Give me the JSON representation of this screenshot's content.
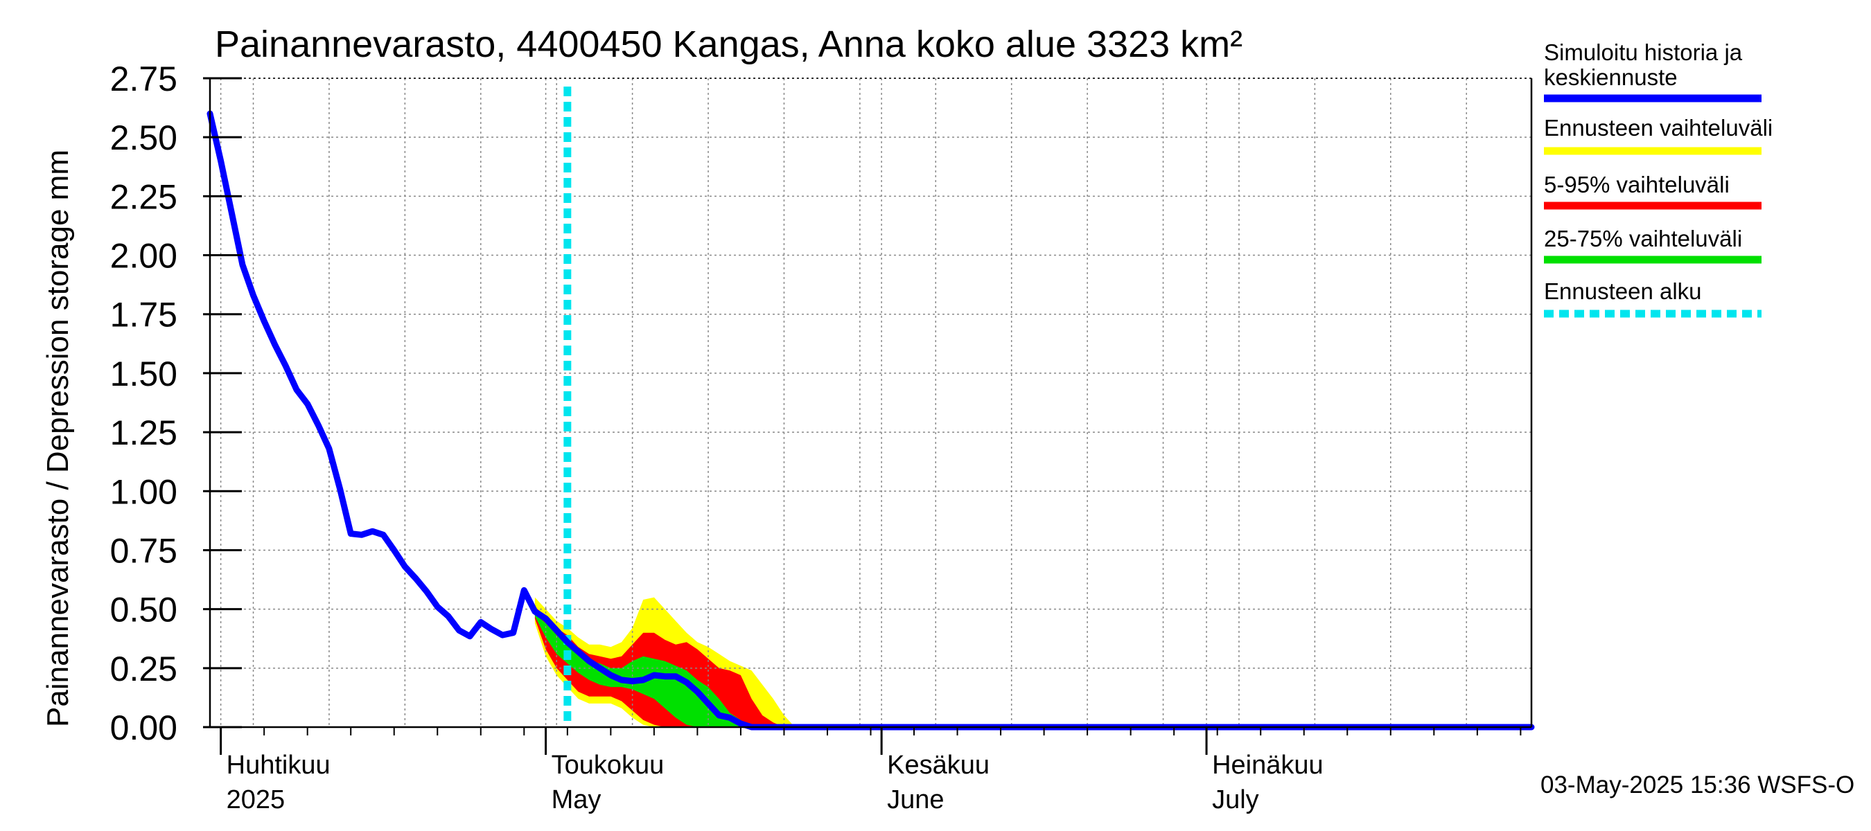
{
  "chart_data": {
    "type": "area",
    "title": "Painannevarasto, 4400450 Kangas, Anna koko alue 3323 km²",
    "ylabel": "Painannevarasto / Depression storage    mm",
    "ylim": [
      0,
      2.75
    ],
    "yticks": [
      "0.00",
      "0.25",
      "0.50",
      "0.75",
      "1.00",
      "1.25",
      "1.50",
      "1.75",
      "2.00",
      "2.25",
      "2.50",
      "2.75"
    ],
    "xlim": [
      "2025-03-31",
      "2025-07-31"
    ],
    "grid": true,
    "legend_position": "right",
    "month_labels": [
      {
        "date": "2025-04-01",
        "fi": "Huhtikuu",
        "en": "2025"
      },
      {
        "date": "2025-05-01",
        "fi": "Toukokuu",
        "en": "May"
      },
      {
        "date": "2025-06-01",
        "fi": "Kesäkuu",
        "en": "June"
      },
      {
        "date": "2025-07-01",
        "fi": "Heinäkuu",
        "en": "July"
      }
    ],
    "forecast_start": "2025-05-03",
    "footer": "03-May-2025 15:36 WSFS-O",
    "legend": [
      {
        "label": "Simuloitu historia ja keskiennuste",
        "color": "#0000ff",
        "style": "solid"
      },
      {
        "label": "Ennusteen vaihteluväli",
        "color": "#ffff00",
        "style": "solid"
      },
      {
        "label": "5-95% vaihteluväli",
        "color": "#ff0000",
        "style": "solid"
      },
      {
        "label": "25-75% vaihteluväli",
        "color": "#00e000",
        "style": "solid"
      },
      {
        "label": "Ennusteen alku",
        "color": "#00e5ee",
        "style": "dotted"
      }
    ],
    "series": [
      {
        "name": "Simuloitu historia ja keskiennuste",
        "color": "#0000ff",
        "points": [
          [
            "2025-03-31",
            2.6
          ],
          [
            "2025-04-01",
            2.4
          ],
          [
            "2025-04-02",
            2.18
          ],
          [
            "2025-04-03",
            1.96
          ],
          [
            "2025-04-04",
            1.83
          ],
          [
            "2025-04-05",
            1.72
          ],
          [
            "2025-04-06",
            1.62
          ],
          [
            "2025-04-07",
            1.53
          ],
          [
            "2025-04-08",
            1.43
          ],
          [
            "2025-04-09",
            1.37
          ],
          [
            "2025-04-10",
            1.28
          ],
          [
            "2025-04-11",
            1.18
          ],
          [
            "2025-04-12",
            1.01
          ],
          [
            "2025-04-13",
            0.82
          ],
          [
            "2025-04-14",
            0.815
          ],
          [
            "2025-04-15",
            0.83
          ],
          [
            "2025-04-16",
            0.815
          ],
          [
            "2025-04-17",
            0.75
          ],
          [
            "2025-04-18",
            0.68
          ],
          [
            "2025-04-19",
            0.63
          ],
          [
            "2025-04-20",
            0.575
          ],
          [
            "2025-04-21",
            0.51
          ],
          [
            "2025-04-22",
            0.47
          ],
          [
            "2025-04-23",
            0.41
          ],
          [
            "2025-04-24",
            0.385
          ],
          [
            "2025-04-25",
            0.445
          ],
          [
            "2025-04-26",
            0.415
          ],
          [
            "2025-04-27",
            0.39
          ],
          [
            "2025-04-28",
            0.4
          ],
          [
            "2025-04-29",
            0.58
          ],
          [
            "2025-04-30",
            0.49
          ],
          [
            "2025-05-01",
            0.46
          ],
          [
            "2025-05-02",
            0.41
          ],
          [
            "2025-05-03",
            0.36
          ],
          [
            "2025-05-04",
            0.32
          ],
          [
            "2025-05-05",
            0.28
          ],
          [
            "2025-05-06",
            0.25
          ],
          [
            "2025-05-07",
            0.22
          ],
          [
            "2025-05-08",
            0.2
          ],
          [
            "2025-05-09",
            0.195
          ],
          [
            "2025-05-10",
            0.2
          ],
          [
            "2025-05-11",
            0.22
          ],
          [
            "2025-05-12",
            0.215
          ],
          [
            "2025-05-13",
            0.215
          ],
          [
            "2025-05-14",
            0.19
          ],
          [
            "2025-05-15",
            0.15
          ],
          [
            "2025-05-16",
            0.1
          ],
          [
            "2025-05-17",
            0.05
          ],
          [
            "2025-05-18",
            0.04
          ],
          [
            "2025-05-19",
            0.015
          ],
          [
            "2025-05-20",
            0.0
          ],
          [
            "2025-07-31",
            0.0
          ]
        ]
      }
    ],
    "bands": [
      {
        "name": "Ennusteen vaihteluväli",
        "color": "#ffff00",
        "upper": [
          [
            "2025-04-30",
            0.55
          ],
          [
            "2025-05-01",
            0.5
          ],
          [
            "2025-05-02",
            0.45
          ],
          [
            "2025-05-03",
            0.42
          ],
          [
            "2025-05-04",
            0.38
          ],
          [
            "2025-05-05",
            0.35
          ],
          [
            "2025-05-06",
            0.35
          ],
          [
            "2025-05-07",
            0.34
          ],
          [
            "2025-05-08",
            0.36
          ],
          [
            "2025-05-09",
            0.42
          ],
          [
            "2025-05-10",
            0.54
          ],
          [
            "2025-05-11",
            0.55
          ],
          [
            "2025-05-12",
            0.5
          ],
          [
            "2025-05-13",
            0.45
          ],
          [
            "2025-05-14",
            0.4
          ],
          [
            "2025-05-15",
            0.36
          ],
          [
            "2025-05-16",
            0.34
          ],
          [
            "2025-05-17",
            0.31
          ],
          [
            "2025-05-18",
            0.28
          ],
          [
            "2025-05-19",
            0.26
          ],
          [
            "2025-05-20",
            0.24
          ],
          [
            "2025-05-21",
            0.18
          ],
          [
            "2025-05-22",
            0.12
          ],
          [
            "2025-05-23",
            0.05
          ],
          [
            "2025-05-24",
            0.0
          ]
        ],
        "lower": [
          [
            "2025-04-30",
            0.44
          ],
          [
            "2025-05-01",
            0.3
          ],
          [
            "2025-05-02",
            0.22
          ],
          [
            "2025-05-03",
            0.17
          ],
          [
            "2025-05-04",
            0.12
          ],
          [
            "2025-05-05",
            0.1
          ],
          [
            "2025-05-06",
            0.1
          ],
          [
            "2025-05-07",
            0.1
          ],
          [
            "2025-05-08",
            0.08
          ],
          [
            "2025-05-09",
            0.04
          ],
          [
            "2025-05-10",
            0.01
          ],
          [
            "2025-05-11",
            0.0
          ],
          [
            "2025-05-24",
            0.0
          ]
        ]
      },
      {
        "name": "5-95% vaihteluväli",
        "color": "#ff0000",
        "upper": [
          [
            "2025-04-30",
            0.51
          ],
          [
            "2025-05-01",
            0.47
          ],
          [
            "2025-05-02",
            0.42
          ],
          [
            "2025-05-03",
            0.39
          ],
          [
            "2025-05-04",
            0.34
          ],
          [
            "2025-05-05",
            0.31
          ],
          [
            "2025-05-06",
            0.3
          ],
          [
            "2025-05-07",
            0.29
          ],
          [
            "2025-05-08",
            0.3
          ],
          [
            "2025-05-09",
            0.35
          ],
          [
            "2025-05-10",
            0.4
          ],
          [
            "2025-05-11",
            0.4
          ],
          [
            "2025-05-12",
            0.37
          ],
          [
            "2025-05-13",
            0.35
          ],
          [
            "2025-05-14",
            0.36
          ],
          [
            "2025-05-15",
            0.33
          ],
          [
            "2025-05-16",
            0.29
          ],
          [
            "2025-05-17",
            0.25
          ],
          [
            "2025-05-18",
            0.24
          ],
          [
            "2025-05-19",
            0.22
          ],
          [
            "2025-05-20",
            0.12
          ],
          [
            "2025-05-21",
            0.05
          ],
          [
            "2025-05-22",
            0.02
          ],
          [
            "2025-05-23",
            0.0
          ]
        ],
        "lower": [
          [
            "2025-04-30",
            0.46
          ],
          [
            "2025-05-01",
            0.33
          ],
          [
            "2025-05-02",
            0.25
          ],
          [
            "2025-05-03",
            0.2
          ],
          [
            "2025-05-04",
            0.15
          ],
          [
            "2025-05-05",
            0.13
          ],
          [
            "2025-05-06",
            0.13
          ],
          [
            "2025-05-07",
            0.13
          ],
          [
            "2025-05-08",
            0.11
          ],
          [
            "2025-05-09",
            0.07
          ],
          [
            "2025-05-10",
            0.03
          ],
          [
            "2025-05-11",
            0.01
          ],
          [
            "2025-05-12",
            0.0
          ],
          [
            "2025-05-23",
            0.0
          ]
        ]
      },
      {
        "name": "25-75% vaihteluväli",
        "color": "#00e000",
        "upper": [
          [
            "2025-04-30",
            0.48
          ],
          [
            "2025-05-01",
            0.44
          ],
          [
            "2025-05-02",
            0.39
          ],
          [
            "2025-05-03",
            0.35
          ],
          [
            "2025-05-04",
            0.31
          ],
          [
            "2025-05-05",
            0.28
          ],
          [
            "2025-05-06",
            0.27
          ],
          [
            "2025-05-07",
            0.25
          ],
          [
            "2025-05-08",
            0.25
          ],
          [
            "2025-05-09",
            0.28
          ],
          [
            "2025-05-10",
            0.3
          ],
          [
            "2025-05-11",
            0.29
          ],
          [
            "2025-05-12",
            0.28
          ],
          [
            "2025-05-13",
            0.26
          ],
          [
            "2025-05-14",
            0.24
          ],
          [
            "2025-05-15",
            0.2
          ],
          [
            "2025-05-16",
            0.17
          ],
          [
            "2025-05-17",
            0.12
          ],
          [
            "2025-05-18",
            0.06
          ],
          [
            "2025-05-19",
            0.03
          ],
          [
            "2025-05-20",
            0.0
          ]
        ],
        "lower": [
          [
            "2025-04-30",
            0.47
          ],
          [
            "2025-05-01",
            0.38
          ],
          [
            "2025-05-02",
            0.31
          ],
          [
            "2025-05-03",
            0.27
          ],
          [
            "2025-05-04",
            0.23
          ],
          [
            "2025-05-05",
            0.2
          ],
          [
            "2025-05-06",
            0.18
          ],
          [
            "2025-05-07",
            0.17
          ],
          [
            "2025-05-08",
            0.17
          ],
          [
            "2025-05-09",
            0.16
          ],
          [
            "2025-05-10",
            0.14
          ],
          [
            "2025-05-11",
            0.12
          ],
          [
            "2025-05-12",
            0.08
          ],
          [
            "2025-05-13",
            0.04
          ],
          [
            "2025-05-14",
            0.01
          ],
          [
            "2025-05-15",
            0.0
          ],
          [
            "2025-05-20",
            0.0
          ]
        ]
      }
    ]
  }
}
